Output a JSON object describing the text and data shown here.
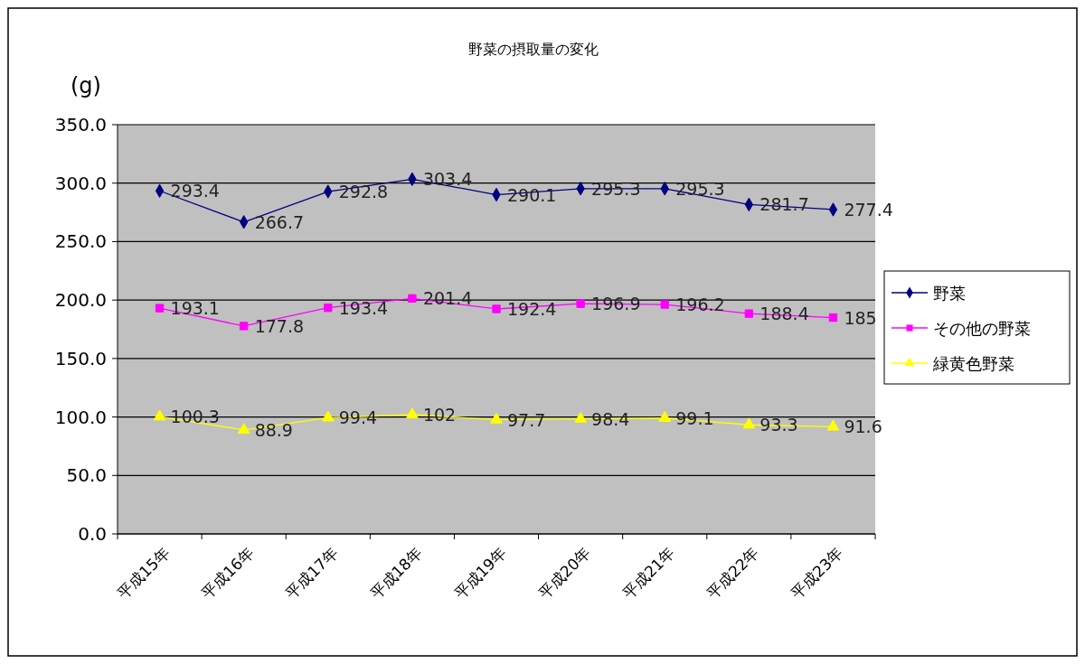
{
  "chart_data": {
    "type": "line",
    "title": "野菜の摂取量の変化",
    "ylabel": "(g)",
    "categories": [
      "平成15年",
      "平成16年",
      "平成17年",
      "平成18年",
      "平成19年",
      "平成20年",
      "平成21年",
      "平成22年",
      "平成23年"
    ],
    "series": [
      {
        "name": "野菜",
        "color": "#000080",
        "marker": "diamond",
        "values": [
          293.4,
          266.7,
          292.8,
          303.4,
          290.1,
          295.3,
          295.3,
          281.7,
          277.4
        ]
      },
      {
        "name": "その他の野菜",
        "color": "#ff00ff",
        "marker": "square",
        "values": [
          193.1,
          177.8,
          193.4,
          201.4,
          192.4,
          196.9,
          196.2,
          188.4,
          185
        ]
      },
      {
        "name": "緑黄色野菜",
        "color": "#ffff00",
        "marker": "triangle",
        "values": [
          100.3,
          88.9,
          99.4,
          102,
          97.7,
          98.4,
          99.1,
          93.3,
          91.6
        ]
      }
    ],
    "ylim": [
      0,
      350
    ],
    "yticks": [
      {
        "value": 0,
        "label": "0.0"
      },
      {
        "value": 50,
        "label": "50.0"
      },
      {
        "value": 100,
        "label": "100.0"
      },
      {
        "value": 150,
        "label": "150.0"
      },
      {
        "value": 200,
        "label": "200.0"
      },
      {
        "value": 250,
        "label": "250.0"
      },
      {
        "value": 300,
        "label": "300.0"
      },
      {
        "value": 350,
        "label": "350.0"
      }
    ],
    "grid": "y",
    "legend": "right",
    "data_labels": true,
    "line_style": "solid"
  }
}
